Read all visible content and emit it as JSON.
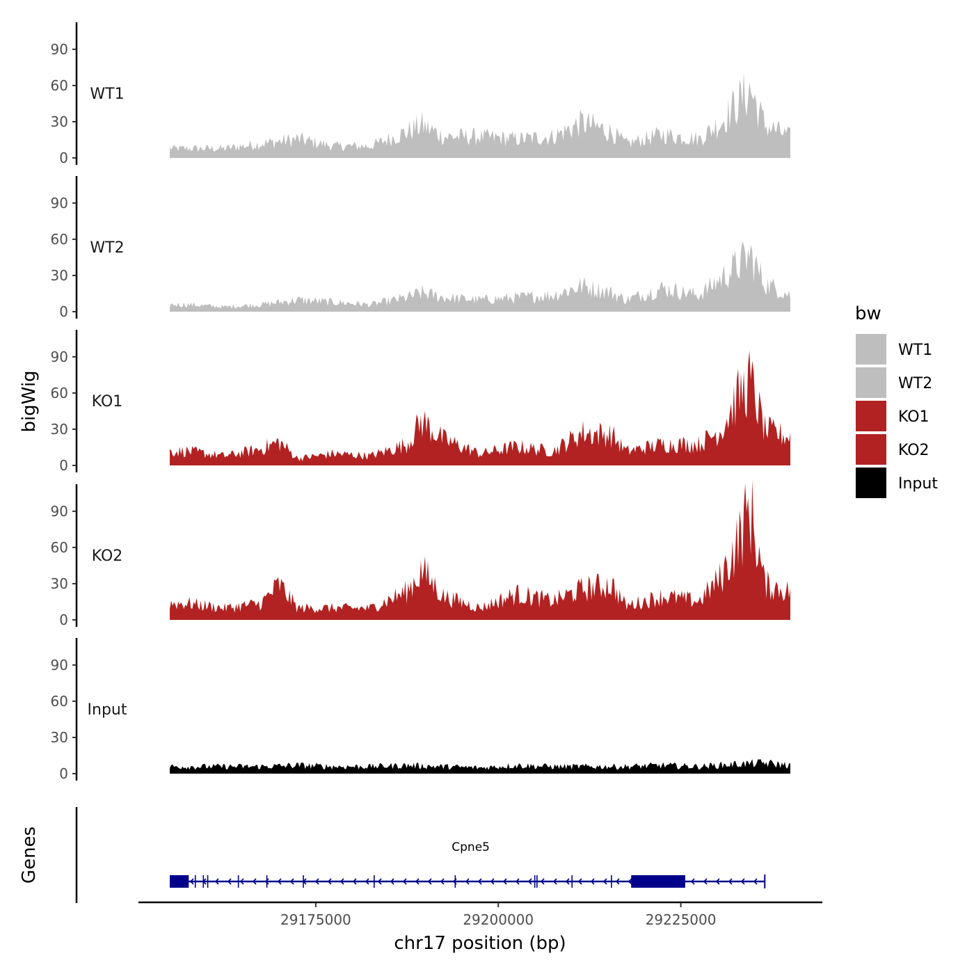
{
  "chart_data": {
    "type": "area",
    "title": "",
    "xlabel": "chr17 position (bp)",
    "ylabel": "bigWig",
    "gene_panel_label": "Genes",
    "x_range": [
      29155000,
      29240000
    ],
    "x_ticks": [
      29175000,
      29200000,
      29225000
    ],
    "x_tick_labels": [
      "29175000",
      "29200000",
      "29225000"
    ],
    "ylim": [
      0,
      110
    ],
    "y_ticks": [
      0,
      30,
      60,
      90
    ],
    "y_tick_labels": [
      "0",
      "30",
      "60",
      "90"
    ],
    "legend": {
      "title": "bw",
      "placement": "right",
      "entries": [
        {
          "name": "WT1",
          "color": "#bebebe"
        },
        {
          "name": "WT2",
          "color": "#bebebe"
        },
        {
          "name": "KO1",
          "color": "#b22222"
        },
        {
          "name": "KO2",
          "color": "#b22222"
        },
        {
          "name": "Input",
          "color": "#000000"
        }
      ]
    },
    "series": [
      {
        "name": "WT1",
        "color": "#bebebe",
        "x": [
          29157500,
          29162500,
          29167500,
          29172500,
          29177500,
          29182500,
          29187500,
          29189500,
          29192500,
          29197500,
          29202500,
          29207500,
          29211500,
          29215500,
          29217500,
          29222500,
          29227500,
          29230500,
          29232500,
          29234500,
          29236500,
          29240000
        ],
        "values": [
          8,
          8,
          12,
          16,
          10,
          10,
          22,
          28,
          18,
          18,
          16,
          18,
          30,
          22,
          12,
          20,
          16,
          30,
          45,
          58,
          28,
          18
        ]
      },
      {
        "name": "WT2",
        "color": "#bebebe",
        "x": [
          29157500,
          29162500,
          29167500,
          29172500,
          29177500,
          29182500,
          29187500,
          29189500,
          29192500,
          29197500,
          29202500,
          29207500,
          29211500,
          29215500,
          29217500,
          29222500,
          29227500,
          29230500,
          29232500,
          29234500,
          29236500,
          29240000
        ],
        "values": [
          6,
          4,
          6,
          10,
          8,
          6,
          12,
          16,
          12,
          10,
          12,
          14,
          22,
          16,
          10,
          20,
          14,
          28,
          38,
          48,
          24,
          14
        ]
      },
      {
        "name": "KO1",
        "color": "#b22222",
        "x": [
          29157500,
          29162500,
          29167500,
          29170000,
          29172500,
          29177500,
          29182500,
          29187500,
          29189500,
          29192500,
          29197500,
          29202500,
          29207500,
          29211500,
          29215500,
          29217500,
          29222500,
          29227500,
          29230500,
          29232500,
          29234500,
          29236500,
          29240000
        ],
        "values": [
          12,
          8,
          14,
          20,
          6,
          10,
          8,
          18,
          38,
          22,
          10,
          16,
          12,
          28,
          26,
          12,
          18,
          18,
          30,
          55,
          72,
          30,
          24
        ]
      },
      {
        "name": "KO2",
        "color": "#b22222",
        "x": [
          29157500,
          29162500,
          29167500,
          29170000,
          29172500,
          29177500,
          29182500,
          29187500,
          29189500,
          29192500,
          29197500,
          29202500,
          29207500,
          29211500,
          29215500,
          29217500,
          29222500,
          29227500,
          29230500,
          29232500,
          29234500,
          29236500,
          29240000
        ],
        "values": [
          14,
          10,
          14,
          30,
          10,
          10,
          10,
          24,
          42,
          20,
          10,
          22,
          16,
          26,
          30,
          12,
          20,
          16,
          36,
          62,
          95,
          30,
          24
        ]
      },
      {
        "name": "Input",
        "color": "#000000",
        "x": [
          29157500,
          29162500,
          29167500,
          29172500,
          29177500,
          29182500,
          29187500,
          29192500,
          29197500,
          29202500,
          29207500,
          29212500,
          29217500,
          29222500,
          29227500,
          29232500,
          29236500,
          29240000
        ],
        "values": [
          6,
          6,
          6,
          7,
          6,
          6,
          7,
          6,
          5,
          7,
          6,
          6,
          6,
          7,
          6,
          8,
          9,
          7
        ]
      }
    ],
    "genes": [
      {
        "name": "Cpne5",
        "start": 29155000,
        "end": 29236500,
        "strand": "-",
        "exon_blocks": [
          [
            29155000,
            29157600
          ],
          [
            29218200,
            29225600
          ]
        ],
        "small_exons": [
          29158500,
          29159600,
          29160200,
          29164400,
          29168300,
          29173300,
          29183000,
          29194100,
          29205000,
          29205300,
          29210100,
          29215500
        ]
      }
    ]
  }
}
